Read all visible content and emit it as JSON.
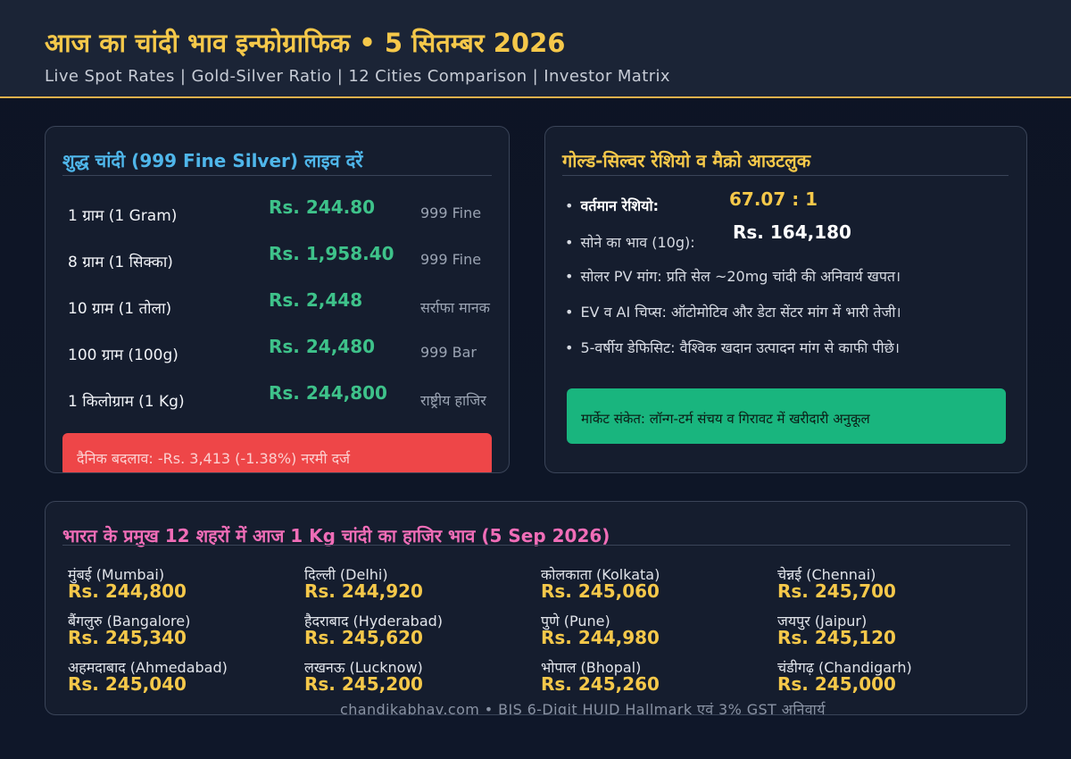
{
  "header": {
    "title": "आज का चांदी भाव इन्फोग्राफिक  •  5 सितम्बर 2026",
    "subtitle": "Live Spot Rates | Gold-Silver Ratio | 12 Cities Comparison | Investor Matrix"
  },
  "silver": {
    "title": "शुद्ध चांदी (999 Fine Silver) लाइव दरें",
    "rows": [
      {
        "label": "1 ग्राम (1 Gram)",
        "price": "Rs. 244.80",
        "note": "999 Fine"
      },
      {
        "label": "8 ग्राम (1 सिक्का)",
        "price": "Rs. 1,958.40",
        "note": "999 Fine"
      },
      {
        "label": "10 ग्राम (1 तोला)",
        "price": "Rs. 2,448",
        "note": "सर्राफा मानक"
      },
      {
        "label": "100 ग्राम (100g)",
        "price": "Rs. 24,480",
        "note": "999 Bar"
      },
      {
        "label": "1 किलोग्राम (1 Kg)",
        "price": "Rs. 244,800",
        "note": "राष्ट्रीय हाजिर"
      }
    ],
    "daily_change": "दैनिक बदलाव: -Rs. 3,413 (-1.38%) नरमी दर्ज"
  },
  "macro": {
    "title": "गोल्ड-सिल्वर रेशियो व मैक्रो आउटलुक",
    "ratio_label": "वर्तमान रेशियो:",
    "ratio_value": "67.07 : 1",
    "gold_label": "सोने का भाव (10g):",
    "gold_value": "Rs. 164,180",
    "bullets": [
      "सोलर PV मांग: प्रति सेल ~20mg चांदी की अनिवार्य खपत।",
      "EV व AI चिप्स: ऑटोमोटिव और डेटा सेंटर मांग में भारी तेजी।",
      "5-वर्षीय डेफिसिट: वैश्विक खदान उत्पादन मांग से काफी पीछे।"
    ],
    "signal": "मार्केट संकेत: लॉन्ग-टर्म संचय व गिरावट में खरीदारी अनुकूल"
  },
  "cities": {
    "title": "भारत के प्रमुख 12 शहरों में आज 1 Kg चांदी का हाजिर भाव (5 Sep 2026)",
    "items": [
      {
        "name": "मुंबई (Mumbai)",
        "price": "Rs. 244,800"
      },
      {
        "name": "दिल्ली (Delhi)",
        "price": "Rs. 244,920"
      },
      {
        "name": "कोलकाता (Kolkata)",
        "price": "Rs. 245,060"
      },
      {
        "name": "चेन्नई (Chennai)",
        "price": "Rs. 245,700"
      },
      {
        "name": "बैंगलुरु (Bangalore)",
        "price": "Rs. 245,340"
      },
      {
        "name": "हैदराबाद (Hyderabad)",
        "price": "Rs. 245,620"
      },
      {
        "name": "पुणे (Pune)",
        "price": "Rs. 244,980"
      },
      {
        "name": "जयपुर (Jaipur)",
        "price": "Rs. 245,120"
      },
      {
        "name": "अहमदाबाद (Ahmedabad)",
        "price": "Rs. 245,040"
      },
      {
        "name": "लखनऊ (Lucknow)",
        "price": "Rs. 245,200"
      },
      {
        "name": "भोपाल (Bhopal)",
        "price": "Rs. 245,260"
      },
      {
        "name": "चंडीगढ़ (Chandigarh)",
        "price": "Rs. 245,000"
      }
    ]
  },
  "footer": "chandikabhav.com   •   BIS 6-Digit HUID Hallmark एवं 3% GST अनिवार्य",
  "colors": {
    "accent_gold": "#f5c84a",
    "silver_title": "#4fb6ea",
    "price_green": "#3ec28a",
    "change_red": "#ee4648",
    "signal_green": "#19b57e",
    "cities_title": "#f06db7"
  }
}
